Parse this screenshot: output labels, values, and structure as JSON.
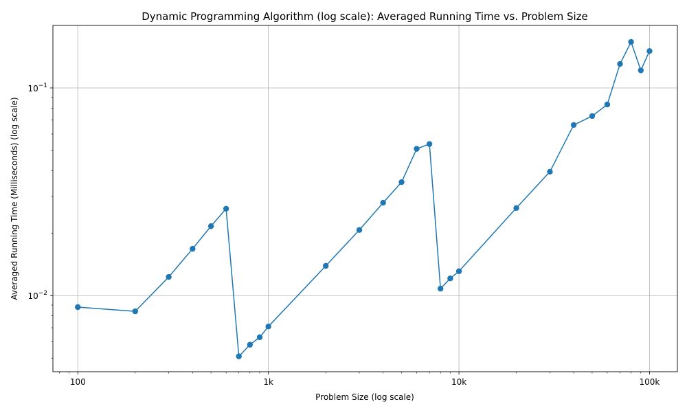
{
  "chart_data": {
    "type": "line",
    "title": "Dynamic Programming Algorithm (log scale): Averaged Running Time vs. Problem Size",
    "xlabel": "Problem Size (log scale)",
    "ylabel": "Averaged Running Time (Milliseconds) (log scale)",
    "xscale": "log",
    "yscale": "log",
    "grid": true,
    "xlim": [
      74,
      140000
    ],
    "ylim": [
      0.0043,
      0.2
    ],
    "xticks": [
      {
        "value": 100,
        "label": "100"
      },
      {
        "value": 1000,
        "label": "1k"
      },
      {
        "value": 10000,
        "label": "10k"
      },
      {
        "value": 100000,
        "label": "100k"
      }
    ],
    "yticks": [
      {
        "value": 0.01,
        "base": "10",
        "exponent": "−2"
      },
      {
        "value": 0.1,
        "base": "10",
        "exponent": "−1"
      }
    ],
    "series": [
      {
        "color": "#1f77b4",
        "marker": "circle",
        "points": [
          {
            "x": 100,
            "y": 0.0088
          },
          {
            "x": 200,
            "y": 0.0084
          },
          {
            "x": 300,
            "y": 0.0123
          },
          {
            "x": 400,
            "y": 0.0168
          },
          {
            "x": 500,
            "y": 0.0216
          },
          {
            "x": 600,
            "y": 0.0262
          },
          {
            "x": 700,
            "y": 0.0051
          },
          {
            "x": 800,
            "y": 0.0058
          },
          {
            "x": 900,
            "y": 0.0063
          },
          {
            "x": 1000,
            "y": 0.0071
          },
          {
            "x": 2000,
            "y": 0.0139
          },
          {
            "x": 3000,
            "y": 0.0207
          },
          {
            "x": 4000,
            "y": 0.028
          },
          {
            "x": 5000,
            "y": 0.0352
          },
          {
            "x": 6000,
            "y": 0.0509
          },
          {
            "x": 7000,
            "y": 0.0537
          },
          {
            "x": 8000,
            "y": 0.0108
          },
          {
            "x": 9000,
            "y": 0.0121
          },
          {
            "x": 10000,
            "y": 0.0131
          },
          {
            "x": 20000,
            "y": 0.0264
          },
          {
            "x": 30000,
            "y": 0.0395
          },
          {
            "x": 40000,
            "y": 0.0663
          },
          {
            "x": 50000,
            "y": 0.0732
          },
          {
            "x": 60000,
            "y": 0.0832
          },
          {
            "x": 70000,
            "y": 0.1305
          },
          {
            "x": 80000,
            "y": 0.1665
          },
          {
            "x": 90000,
            "y": 0.1215
          },
          {
            "x": 100000,
            "y": 0.1505
          }
        ]
      }
    ]
  }
}
